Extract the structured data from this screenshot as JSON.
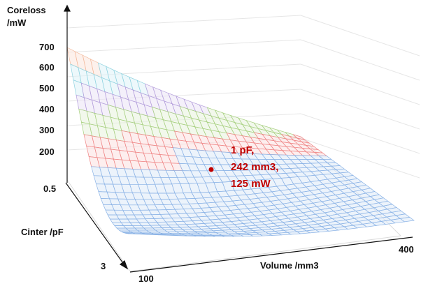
{
  "chart_data": {
    "type": "surface",
    "zlabel_line1": "Coreloss",
    "zlabel_line2": "/mW",
    "xlabel": "Volume /mm3",
    "ylabel": "Cinter /pF",
    "x_ticks": [
      "100",
      "400"
    ],
    "y_ticks": [
      "0.5",
      "3"
    ],
    "z_ticks": [
      "700",
      "600",
      "500",
      "400",
      "300",
      "200"
    ],
    "x_range": [
      100,
      400
    ],
    "y_range": [
      0.5,
      3
    ],
    "z_range": [
      100,
      700
    ],
    "grid": true,
    "band_colors": [
      "#f3b89a",
      "#8fd3e0",
      "#b39ddb",
      "#a5cf7d",
      "#ef8585",
      "#8bb3e6"
    ],
    "annotation": {
      "line1": "1 pF,",
      "line2": "242 mm3,",
      "line3": "125 mW",
      "point": {
        "volume": 242,
        "cinter": 1,
        "coreloss": 125
      },
      "color": "#c00000"
    }
  }
}
